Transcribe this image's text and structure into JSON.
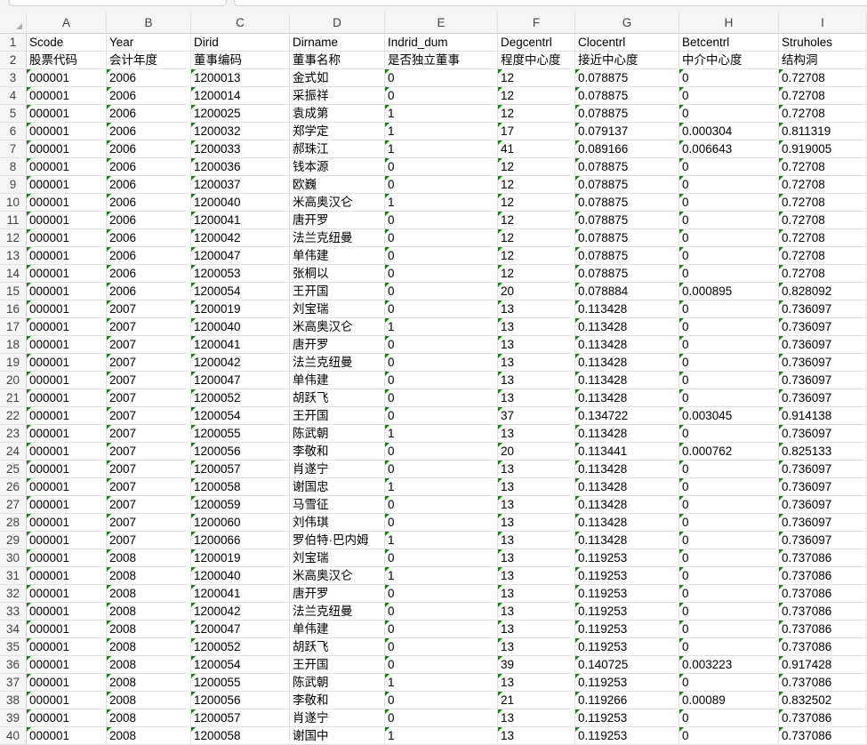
{
  "columns": [
    "A",
    "B",
    "C",
    "D",
    "E",
    "F",
    "G",
    "H",
    "I"
  ],
  "rows": [
    [
      "Scode",
      "Year",
      "Dirid",
      "Dirname",
      "Indrid_dum",
      "Degcentrl",
      "Clocentrl",
      "Betcentrl",
      "Struholes"
    ],
    [
      "股票代码",
      "会计年度",
      "董事编码",
      "董事名称",
      "是否独立董事",
      "程度中心度",
      "接近中心度",
      "中介中心度",
      "结构洞"
    ],
    [
      "000001",
      "2006",
      "1200013",
      "金式如",
      "0",
      "12",
      "0.078875",
      "0",
      "0.72708"
    ],
    [
      "000001",
      "2006",
      "1200014",
      "采振祥",
      "0",
      "12",
      "0.078875",
      "0",
      "0.72708"
    ],
    [
      "000001",
      "2006",
      "1200025",
      "袁成第",
      "1",
      "12",
      "0.078875",
      "0",
      "0.72708"
    ],
    [
      "000001",
      "2006",
      "1200032",
      "郑学定",
      "1",
      "17",
      "0.079137",
      "0.000304",
      "0.811319"
    ],
    [
      "000001",
      "2006",
      "1200033",
      "郝珠江",
      "1",
      "41",
      "0.089166",
      "0.006643",
      "0.919005"
    ],
    [
      "000001",
      "2006",
      "1200036",
      "钱本源",
      "0",
      "12",
      "0.078875",
      "0",
      "0.72708"
    ],
    [
      "000001",
      "2006",
      "1200037",
      "欧巍",
      "0",
      "12",
      "0.078875",
      "0",
      "0.72708"
    ],
    [
      "000001",
      "2006",
      "1200040",
      "米高奥汉仑",
      "1",
      "12",
      "0.078875",
      "0",
      "0.72708"
    ],
    [
      "000001",
      "2006",
      "1200041",
      "唐开罗",
      "0",
      "12",
      "0.078875",
      "0",
      "0.72708"
    ],
    [
      "000001",
      "2006",
      "1200042",
      "法兰克纽曼",
      "0",
      "12",
      "0.078875",
      "0",
      "0.72708"
    ],
    [
      "000001",
      "2006",
      "1200047",
      "单伟建",
      "0",
      "12",
      "0.078875",
      "0",
      "0.72708"
    ],
    [
      "000001",
      "2006",
      "1200053",
      "张桐以",
      "0",
      "12",
      "0.078875",
      "0",
      "0.72708"
    ],
    [
      "000001",
      "2006",
      "1200054",
      "王开国",
      "0",
      "20",
      "0.078884",
      "0.000895",
      "0.828092"
    ],
    [
      "000001",
      "2007",
      "1200019",
      "刘宝瑞",
      "0",
      "13",
      "0.113428",
      "0",
      "0.736097"
    ],
    [
      "000001",
      "2007",
      "1200040",
      "米高奥汉仑",
      "1",
      "13",
      "0.113428",
      "0",
      "0.736097"
    ],
    [
      "000001",
      "2007",
      "1200041",
      "唐开罗",
      "0",
      "13",
      "0.113428",
      "0",
      "0.736097"
    ],
    [
      "000001",
      "2007",
      "1200042",
      "法兰克纽曼",
      "0",
      "13",
      "0.113428",
      "0",
      "0.736097"
    ],
    [
      "000001",
      "2007",
      "1200047",
      "单伟建",
      "0",
      "13",
      "0.113428",
      "0",
      "0.736097"
    ],
    [
      "000001",
      "2007",
      "1200052",
      "胡跃飞",
      "0",
      "13",
      "0.113428",
      "0",
      "0.736097"
    ],
    [
      "000001",
      "2007",
      "1200054",
      "王开国",
      "0",
      "37",
      "0.134722",
      "0.003045",
      "0.914138"
    ],
    [
      "000001",
      "2007",
      "1200055",
      "陈武朝",
      "1",
      "13",
      "0.113428",
      "0",
      "0.736097"
    ],
    [
      "000001",
      "2007",
      "1200056",
      "李敬和",
      "0",
      "20",
      "0.113441",
      "0.000762",
      "0.825133"
    ],
    [
      "000001",
      "2007",
      "1200057",
      "肖遂宁",
      "0",
      "13",
      "0.113428",
      "0",
      "0.736097"
    ],
    [
      "000001",
      "2007",
      "1200058",
      "谢国忠",
      "1",
      "13",
      "0.113428",
      "0",
      "0.736097"
    ],
    [
      "000001",
      "2007",
      "1200059",
      "马雪征",
      "0",
      "13",
      "0.113428",
      "0",
      "0.736097"
    ],
    [
      "000001",
      "2007",
      "1200060",
      "刘伟琪",
      "0",
      "13",
      "0.113428",
      "0",
      "0.736097"
    ],
    [
      "000001",
      "2007",
      "1200066",
      "罗伯特·巴内姆",
      "1",
      "13",
      "0.113428",
      "0",
      "0.736097"
    ],
    [
      "000001",
      "2008",
      "1200019",
      "刘宝瑞",
      "0",
      "13",
      "0.119253",
      "0",
      "0.737086"
    ],
    [
      "000001",
      "2008",
      "1200040",
      "米高奥汉仑",
      "1",
      "13",
      "0.119253",
      "0",
      "0.737086"
    ],
    [
      "000001",
      "2008",
      "1200041",
      "唐开罗",
      "0",
      "13",
      "0.119253",
      "0",
      "0.737086"
    ],
    [
      "000001",
      "2008",
      "1200042",
      "法兰克纽曼",
      "0",
      "13",
      "0.119253",
      "0",
      "0.737086"
    ],
    [
      "000001",
      "2008",
      "1200047",
      "单伟建",
      "0",
      "13",
      "0.119253",
      "0",
      "0.737086"
    ],
    [
      "000001",
      "2008",
      "1200052",
      "胡跃飞",
      "0",
      "13",
      "0.119253",
      "0",
      "0.737086"
    ],
    [
      "000001",
      "2008",
      "1200054",
      "王开国",
      "0",
      "39",
      "0.140725",
      "0.003223",
      "0.917428"
    ],
    [
      "000001",
      "2008",
      "1200055",
      "陈武朝",
      "1",
      "13",
      "0.119253",
      "0",
      "0.737086"
    ],
    [
      "000001",
      "2008",
      "1200056",
      "李敬和",
      "0",
      "21",
      "0.119266",
      "0.00089",
      "0.832502"
    ],
    [
      "000001",
      "2008",
      "1200057",
      "肖遂宁",
      "0",
      "13",
      "0.119253",
      "0",
      "0.737086"
    ],
    [
      "000001",
      "2008",
      "1200058",
      "谢国中",
      "1",
      "13",
      "0.119253",
      "0",
      "0.737086"
    ]
  ],
  "row_numbers": [
    "1",
    "2",
    "3",
    "4",
    "5",
    "6",
    "7",
    "8",
    "9",
    "10",
    "11",
    "12",
    "13",
    "14",
    "15",
    "16",
    "17",
    "18",
    "19",
    "20",
    "21",
    "22",
    "23",
    "24",
    "25",
    "26",
    "27",
    "28",
    "29",
    "30",
    "31",
    "32",
    "33",
    "34",
    "35",
    "36",
    "37",
    "38",
    "39",
    "40"
  ],
  "colors": {
    "error_indicator": "#1e7b1e",
    "gridline": "#e1e1e1",
    "header_bg": "#f5f5f5"
  }
}
